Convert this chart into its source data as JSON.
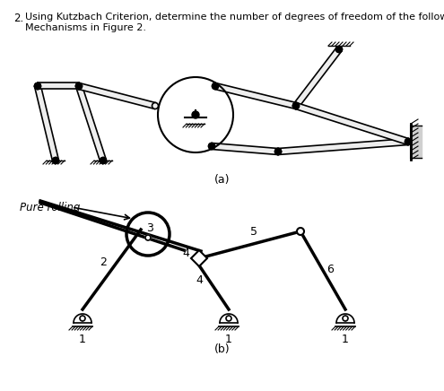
{
  "bg_color": "#ffffff",
  "line_color": "#000000",
  "fig_width": 4.95,
  "fig_height": 4.36,
  "dpi": 100,
  "text_title_line1": "Using Kutzbach Criterion, determine the number of degrees of freedom of the following",
  "text_title_line2": "Mechanisms in Figure 2.",
  "label_a": "(a)",
  "label_b": "(b)",
  "label_pure_rolling": "Pure rolling",
  "labels_b_numbers": [
    "2",
    "3",
    "4",
    "4",
    "5",
    "6"
  ],
  "labels_b_ground": [
    "1",
    "1",
    "1"
  ]
}
